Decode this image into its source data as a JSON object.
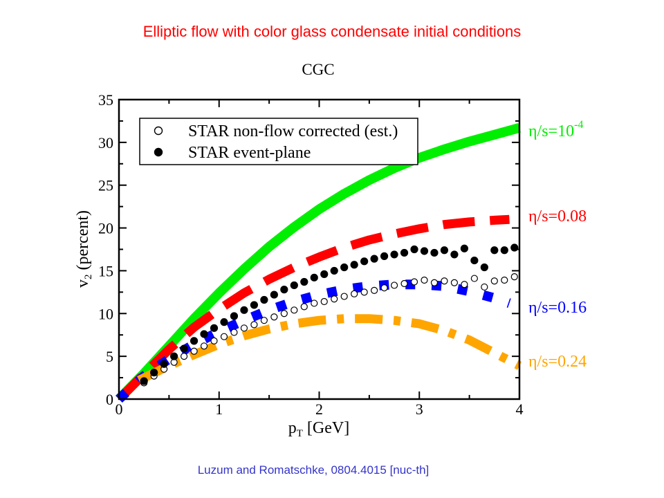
{
  "slide": {
    "headline": "Elliptic flow with color glass condensate initial conditions",
    "citation": "Luzum and Romatschke, 0804.4015 [nuc-th]"
  },
  "chart_data": {
    "type": "scatter",
    "title": "CGC",
    "xlabel": "p_T [GeV]",
    "ylabel": "v_2 (percent)",
    "xlim": [
      0,
      4
    ],
    "ylim": [
      0,
      35
    ],
    "x_ticks": [
      "0",
      "1",
      "2",
      "3",
      "4"
    ],
    "y_ticks": [
      "0",
      "5",
      "10",
      "15",
      "20",
      "25",
      "30",
      "35"
    ],
    "legend_position": "top-left",
    "legend": [
      {
        "label": "STAR non-flow corrected (est.)",
        "marker": "open-circle"
      },
      {
        "label": "STAR event-plane",
        "marker": "filled-circle"
      }
    ],
    "curves": [
      {
        "label": "η/s=10",
        "label_sup": "-4",
        "color": "#00ee00",
        "style": "solid",
        "x": [
          0,
          0.25,
          0.5,
          0.75,
          1.0,
          1.25,
          1.5,
          1.75,
          2.0,
          2.25,
          2.5,
          2.75,
          3.0,
          3.25,
          3.5,
          3.75,
          4.0
        ],
        "y": [
          0,
          3.0,
          6.2,
          9.4,
          12.4,
          15.2,
          17.8,
          20.1,
          22.2,
          24.0,
          25.6,
          27.0,
          28.2,
          29.2,
          30.1,
          30.9,
          31.7
        ]
      },
      {
        "label": "η/s=0.08",
        "color": "#ff0000",
        "style": "long-dash",
        "x": [
          0,
          0.25,
          0.5,
          0.75,
          1.0,
          1.25,
          1.5,
          1.75,
          2.0,
          2.25,
          2.5,
          2.75,
          3.0,
          3.25,
          3.5,
          3.75,
          3.9
        ],
        "y": [
          0,
          2.9,
          5.8,
          8.4,
          10.5,
          12.4,
          14.0,
          15.4,
          16.6,
          17.7,
          18.6,
          19.3,
          19.9,
          20.4,
          20.7,
          20.9,
          21.0
        ]
      },
      {
        "label": "η/s=0.16",
        "color": "#0000ff",
        "style": "dash",
        "x": [
          0,
          0.25,
          0.5,
          0.75,
          1.0,
          1.25,
          1.5,
          1.75,
          2.0,
          2.25,
          2.5,
          2.75,
          3.0,
          3.25,
          3.5,
          3.75,
          3.9
        ],
        "y": [
          0,
          2.7,
          4.7,
          6.4,
          7.9,
          9.2,
          10.4,
          11.4,
          12.2,
          12.8,
          13.2,
          13.4,
          13.4,
          13.2,
          12.6,
          11.8,
          11.2
        ]
      },
      {
        "label": "η/s=0.24",
        "color": "#ffa500",
        "style": "dash-dot",
        "x": [
          0.2,
          0.5,
          0.75,
          1.0,
          1.25,
          1.5,
          1.75,
          2.0,
          2.25,
          2.5,
          2.75,
          3.0,
          3.25,
          3.5,
          3.75,
          4.0
        ],
        "y": [
          2.2,
          3.9,
          5.2,
          6.4,
          7.4,
          8.2,
          8.8,
          9.2,
          9.4,
          9.4,
          9.2,
          8.8,
          8.0,
          6.9,
          5.4,
          3.9
        ]
      }
    ],
    "series": [
      {
        "name": "STAR non-flow corrected (est.)",
        "marker": "open-circle",
        "x": [
          0.25,
          0.35,
          0.45,
          0.55,
          0.65,
          0.75,
          0.85,
          0.95,
          1.05,
          1.15,
          1.25,
          1.35,
          1.45,
          1.55,
          1.65,
          1.75,
          1.85,
          1.95,
          2.05,
          2.15,
          2.25,
          2.35,
          2.45,
          2.55,
          2.65,
          2.75,
          2.85,
          2.95,
          3.05,
          3.15,
          3.25,
          3.35,
          3.45,
          3.55,
          3.65,
          3.75,
          3.85,
          3.95
        ],
        "y": [
          1.9,
          2.7,
          3.5,
          4.3,
          5.0,
          5.6,
          6.2,
          6.8,
          7.3,
          7.8,
          8.3,
          8.7,
          9.2,
          9.6,
          10.0,
          10.4,
          10.8,
          11.2,
          11.4,
          11.7,
          12.0,
          12.3,
          12.5,
          12.7,
          13.0,
          13.3,
          13.5,
          13.7,
          13.9,
          13.6,
          13.8,
          13.6,
          13.4,
          14.1,
          13.1,
          13.8,
          13.9,
          14.3
        ]
      },
      {
        "name": "STAR event-plane",
        "marker": "filled-circle",
        "x": [
          0.25,
          0.35,
          0.45,
          0.55,
          0.65,
          0.75,
          0.85,
          0.95,
          1.05,
          1.15,
          1.25,
          1.35,
          1.45,
          1.55,
          1.65,
          1.75,
          1.85,
          1.95,
          2.05,
          2.15,
          2.25,
          2.35,
          2.45,
          2.55,
          2.65,
          2.75,
          2.85,
          2.95,
          3.05,
          3.15,
          3.25,
          3.35,
          3.45,
          3.55,
          3.65,
          3.75,
          3.85,
          3.95
        ],
        "y": [
          2.1,
          3.1,
          4.1,
          5.0,
          5.9,
          6.8,
          7.6,
          8.3,
          9.0,
          9.7,
          10.4,
          11.0,
          11.6,
          12.2,
          12.8,
          13.3,
          13.7,
          14.2,
          14.6,
          15.0,
          15.4,
          15.7,
          16.1,
          16.4,
          16.7,
          16.9,
          17.1,
          17.5,
          17.3,
          17.1,
          17.4,
          16.9,
          17.6,
          16.2,
          15.4,
          17.4,
          17.4,
          17.7
        ]
      }
    ]
  }
}
